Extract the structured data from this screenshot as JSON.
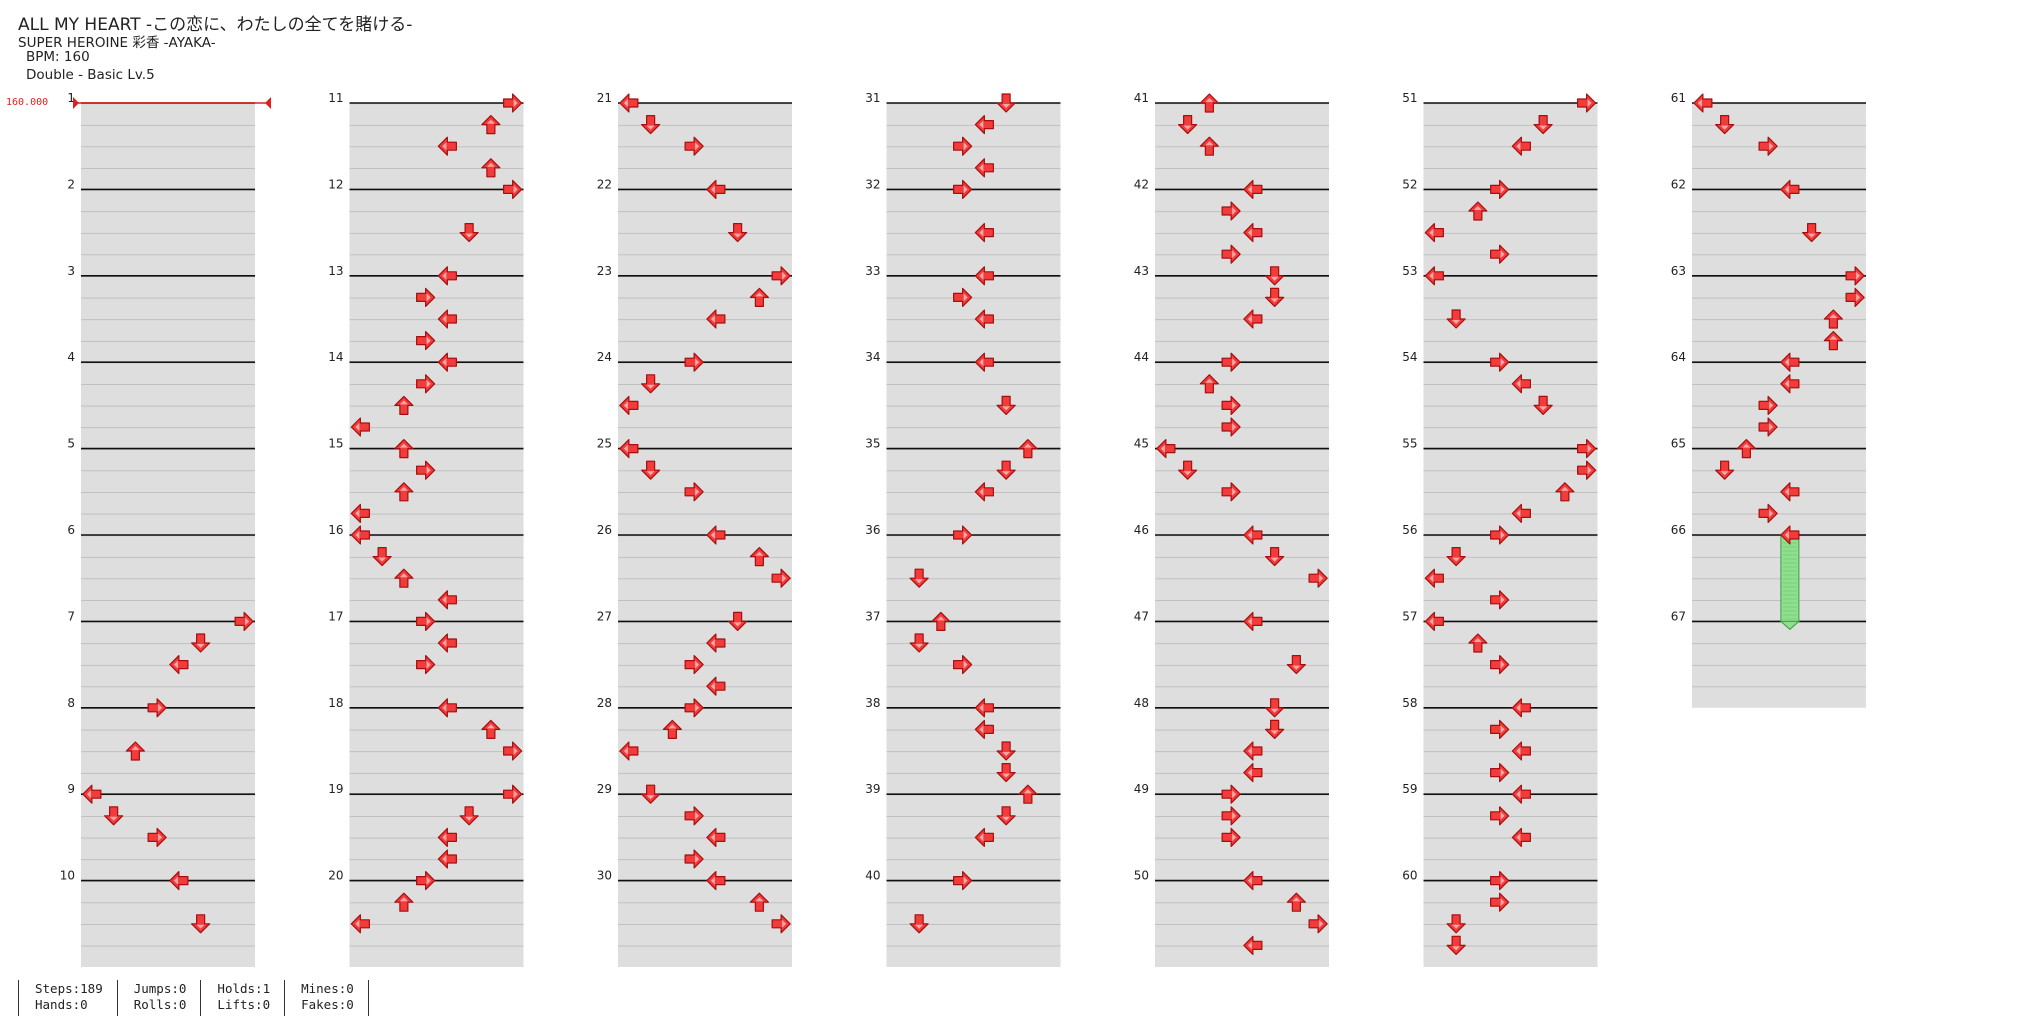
{
  "header": {
    "title": "ALL MY HEART -この恋に、わたしの全てを賭ける-",
    "artist": "SUPER HEROINE 彩香 -AYAKA-",
    "bpm": "BPM: 160",
    "chart_type": "Double - Basic  Lv.5"
  },
  "bpm_marker": "160.000",
  "colors": {
    "note": "#f23b3b",
    "note_outline": "#a80e0e",
    "hold": "#8ee08e",
    "hold_outline": "#3f9a3f",
    "band": "#dedede",
    "bpm": "#e02020"
  },
  "chart": {
    "measures_per_column": 10,
    "total_measures": 67,
    "lanes": 8,
    "notes": [
      [
        11,
        7,
        "r",
        0
      ],
      [
        11,
        6,
        "u",
        1
      ],
      [
        11,
        4,
        "l",
        2
      ],
      [
        11,
        6,
        "u",
        3
      ],
      [
        11,
        7,
        "r",
        4
      ],
      [
        12,
        5,
        "d",
        2
      ],
      [
        13,
        4,
        "l",
        0
      ],
      [
        13,
        3,
        "r",
        1
      ],
      [
        13,
        4,
        "l",
        2
      ],
      [
        13,
        3,
        "r",
        3
      ],
      [
        14,
        4,
        "l",
        0
      ],
      [
        14,
        3,
        "r",
        1
      ],
      [
        14,
        2,
        "u",
        2
      ],
      [
        14,
        0,
        "l",
        3
      ],
      [
        15,
        2,
        "u",
        0
      ],
      [
        15,
        3,
        "r",
        1
      ],
      [
        15,
        2,
        "u",
        2
      ],
      [
        15,
        0,
        "l",
        3
      ],
      [
        16,
        0,
        "l",
        0
      ],
      [
        16,
        1,
        "d",
        1
      ],
      [
        16,
        2,
        "u",
        2
      ],
      [
        16,
        4,
        "l",
        3
      ],
      [
        17,
        3,
        "r",
        0
      ],
      [
        17,
        4,
        "l",
        1
      ],
      [
        17,
        3,
        "r",
        2
      ],
      [
        18,
        4,
        "l",
        0
      ],
      [
        18,
        6,
        "u",
        1
      ],
      [
        18,
        7,
        "r",
        2
      ],
      [
        19,
        7,
        "r",
        0
      ],
      [
        19,
        5,
        "d",
        1
      ],
      [
        19,
        4,
        "l",
        2
      ],
      [
        19,
        4,
        "l",
        3
      ],
      [
        20,
        3,
        "r",
        0
      ],
      [
        20,
        2,
        "u",
        1
      ],
      [
        20,
        0,
        "l",
        2
      ],
      [
        7,
        7,
        "r",
        0
      ],
      [
        7,
        5,
        "d",
        1
      ],
      [
        7,
        4,
        "l",
        2
      ],
      [
        8,
        3,
        "r",
        0
      ],
      [
        8,
        2,
        "u",
        2
      ],
      [
        9,
        0,
        "l",
        0
      ],
      [
        9,
        1,
        "d",
        1
      ],
      [
        9,
        3,
        "r",
        2
      ],
      [
        10,
        4,
        "l",
        0
      ],
      [
        10,
        5,
        "d",
        2
      ],
      [
        21,
        0,
        "l",
        0
      ],
      [
        21,
        1,
        "d",
        1
      ],
      [
        21,
        3,
        "r",
        2
      ],
      [
        22,
        4,
        "l",
        0
      ],
      [
        22,
        5,
        "d",
        2
      ],
      [
        23,
        7,
        "r",
        0
      ],
      [
        23,
        6,
        "u",
        1
      ],
      [
        23,
        4,
        "l",
        2
      ],
      [
        24,
        3,
        "r",
        0
      ],
      [
        24,
        1,
        "d",
        1
      ],
      [
        24,
        0,
        "l",
        2
      ],
      [
        25,
        0,
        "l",
        0
      ],
      [
        25,
        1,
        "d",
        1
      ],
      [
        25,
        3,
        "r",
        2
      ],
      [
        26,
        4,
        "l",
        0
      ],
      [
        26,
        6,
        "u",
        1
      ],
      [
        26,
        7,
        "r",
        2
      ],
      [
        27,
        5,
        "d",
        0
      ],
      [
        27,
        4,
        "l",
        1
      ],
      [
        27,
        3,
        "r",
        2
      ],
      [
        27,
        4,
        "l",
        3
      ],
      [
        28,
        3,
        "r",
        0
      ],
      [
        28,
        2,
        "u",
        1
      ],
      [
        28,
        0,
        "l",
        2
      ],
      [
        29,
        1,
        "d",
        0
      ],
      [
        29,
        3,
        "r",
        1
      ],
      [
        29,
        4,
        "l",
        2
      ],
      [
        29,
        3,
        "r",
        3
      ],
      [
        30,
        4,
        "l",
        0
      ],
      [
        30,
        6,
        "u",
        1
      ],
      [
        30,
        7,
        "r",
        2
      ],
      [
        31,
        5,
        "d",
        0
      ],
      [
        31,
        4,
        "l",
        1
      ],
      [
        31,
        3,
        "r",
        2
      ],
      [
        31,
        4,
        "l",
        3
      ],
      [
        32,
        3,
        "r",
        0
      ],
      [
        32,
        4,
        "l",
        2
      ],
      [
        33,
        4,
        "l",
        0
      ],
      [
        33,
        3,
        "r",
        1
      ],
      [
        33,
        4,
        "l",
        2
      ],
      [
        34,
        4,
        "l",
        0
      ],
      [
        34,
        5,
        "d",
        2
      ],
      [
        35,
        6,
        "u",
        0
      ],
      [
        35,
        5,
        "d",
        1
      ],
      [
        35,
        4,
        "l",
        2
      ],
      [
        36,
        3,
        "r",
        0
      ],
      [
        36,
        1,
        "d",
        2
      ],
      [
        37,
        2,
        "u",
        0
      ],
      [
        37,
        1,
        "d",
        1
      ],
      [
        37,
        3,
        "r",
        2
      ],
      [
        38,
        4,
        "l",
        0
      ],
      [
        38,
        4,
        "l",
        1
      ],
      [
        38,
        5,
        "d",
        2
      ],
      [
        38,
        5,
        "d",
        3
      ],
      [
        39,
        6,
        "u",
        0
      ],
      [
        39,
        5,
        "d",
        1
      ],
      [
        39,
        4,
        "l",
        2
      ],
      [
        40,
        3,
        "r",
        0
      ],
      [
        40,
        1,
        "d",
        2
      ],
      [
        41,
        2,
        "u",
        0
      ],
      [
        41,
        1,
        "d",
        1
      ],
      [
        41,
        2,
        "u",
        2
      ],
      [
        42,
        4,
        "l",
        0
      ],
      [
        42,
        3,
        "r",
        1
      ],
      [
        42,
        4,
        "l",
        2
      ],
      [
        42,
        3,
        "r",
        3
      ],
      [
        43,
        5,
        "d",
        0
      ],
      [
        43,
        5,
        "d",
        1
      ],
      [
        43,
        4,
        "l",
        2
      ],
      [
        44,
        3,
        "r",
        0
      ],
      [
        44,
        2,
        "u",
        1
      ],
      [
        44,
        3,
        "r",
        2
      ],
      [
        44,
        3,
        "r",
        3
      ],
      [
        45,
        0,
        "l",
        0
      ],
      [
        45,
        1,
        "d",
        1
      ],
      [
        45,
        3,
        "r",
        2
      ],
      [
        46,
        4,
        "l",
        0
      ],
      [
        46,
        5,
        "d",
        1
      ],
      [
        46,
        7,
        "r",
        2
      ],
      [
        47,
        4,
        "l",
        0
      ],
      [
        47,
        6,
        "d",
        2
      ],
      [
        48,
        5,
        "d",
        0
      ],
      [
        48,
        5,
        "d",
        1
      ],
      [
        48,
        4,
        "l",
        2
      ],
      [
        48,
        4,
        "l",
        3
      ],
      [
        49,
        3,
        "r",
        0
      ],
      [
        49,
        3,
        "r",
        1
      ],
      [
        49,
        3,
        "r",
        2
      ],
      [
        50,
        4,
        "l",
        0
      ],
      [
        50,
        6,
        "u",
        1
      ],
      [
        50,
        7,
        "r",
        2
      ],
      [
        50,
        4,
        "l",
        3
      ],
      [
        51,
        7,
        "r",
        0
      ],
      [
        51,
        5,
        "d",
        1
      ],
      [
        51,
        4,
        "l",
        2
      ],
      [
        52,
        3,
        "r",
        0
      ],
      [
        52,
        2,
        "u",
        1
      ],
      [
        52,
        0,
        "l",
        2
      ],
      [
        52,
        3,
        "r",
        3
      ],
      [
        53,
        0,
        "l",
        0
      ],
      [
        53,
        1,
        "d",
        2
      ],
      [
        54,
        3,
        "r",
        0
      ],
      [
        54,
        4,
        "l",
        1
      ],
      [
        54,
        5,
        "d",
        2
      ],
      [
        55,
        7,
        "r",
        0
      ],
      [
        55,
        7,
        "r",
        1
      ],
      [
        55,
        6,
        "u",
        2
      ],
      [
        55,
        4,
        "l",
        3
      ],
      [
        56,
        3,
        "r",
        0
      ],
      [
        56,
        1,
        "d",
        1
      ],
      [
        56,
        0,
        "l",
        2
      ],
      [
        56,
        3,
        "r",
        3
      ],
      [
        57,
        0,
        "l",
        0
      ],
      [
        57,
        2,
        "u",
        1
      ],
      [
        57,
        3,
        "r",
        2
      ],
      [
        58,
        4,
        "l",
        0
      ],
      [
        58,
        3,
        "r",
        1
      ],
      [
        58,
        4,
        "l",
        2
      ],
      [
        58,
        3,
        "r",
        3
      ],
      [
        59,
        4,
        "l",
        0
      ],
      [
        59,
        3,
        "r",
        1
      ],
      [
        59,
        4,
        "l",
        2
      ],
      [
        60,
        3,
        "r",
        0
      ],
      [
        60,
        3,
        "r",
        1
      ],
      [
        60,
        1,
        "d",
        2
      ],
      [
        60,
        1,
        "d",
        3
      ],
      [
        61,
        0,
        "l",
        0
      ],
      [
        61,
        1,
        "d",
        1
      ],
      [
        61,
        3,
        "r",
        2
      ],
      [
        62,
        4,
        "l",
        0
      ],
      [
        62,
        5,
        "d",
        2
      ],
      [
        63,
        7,
        "r",
        0
      ],
      [
        63,
        7,
        "r",
        1
      ],
      [
        63,
        6,
        "u",
        2
      ],
      [
        63,
        6,
        "u",
        3
      ],
      [
        64,
        4,
        "l",
        0
      ],
      [
        64,
        4,
        "l",
        1
      ],
      [
        64,
        3,
        "r",
        2
      ],
      [
        64,
        3,
        "r",
        3
      ],
      [
        65,
        2,
        "u",
        0
      ],
      [
        65,
        1,
        "d",
        1
      ],
      [
        65,
        4,
        "l",
        2
      ],
      [
        65,
        3,
        "r",
        3
      ],
      [
        66,
        4,
        "l",
        0
      ]
    ],
    "holds": [
      [
        66,
        4,
        0,
        67,
        0
      ]
    ]
  },
  "stats": [
    {
      "line1": "Steps:189",
      "line2": "Hands:0"
    },
    {
      "line1": "Jumps:0",
      "line2": "Rolls:0"
    },
    {
      "line1": "Holds:1",
      "line2": "Lifts:0"
    },
    {
      "line1": "Mines:0",
      "line2": "Fakes:0"
    }
  ]
}
